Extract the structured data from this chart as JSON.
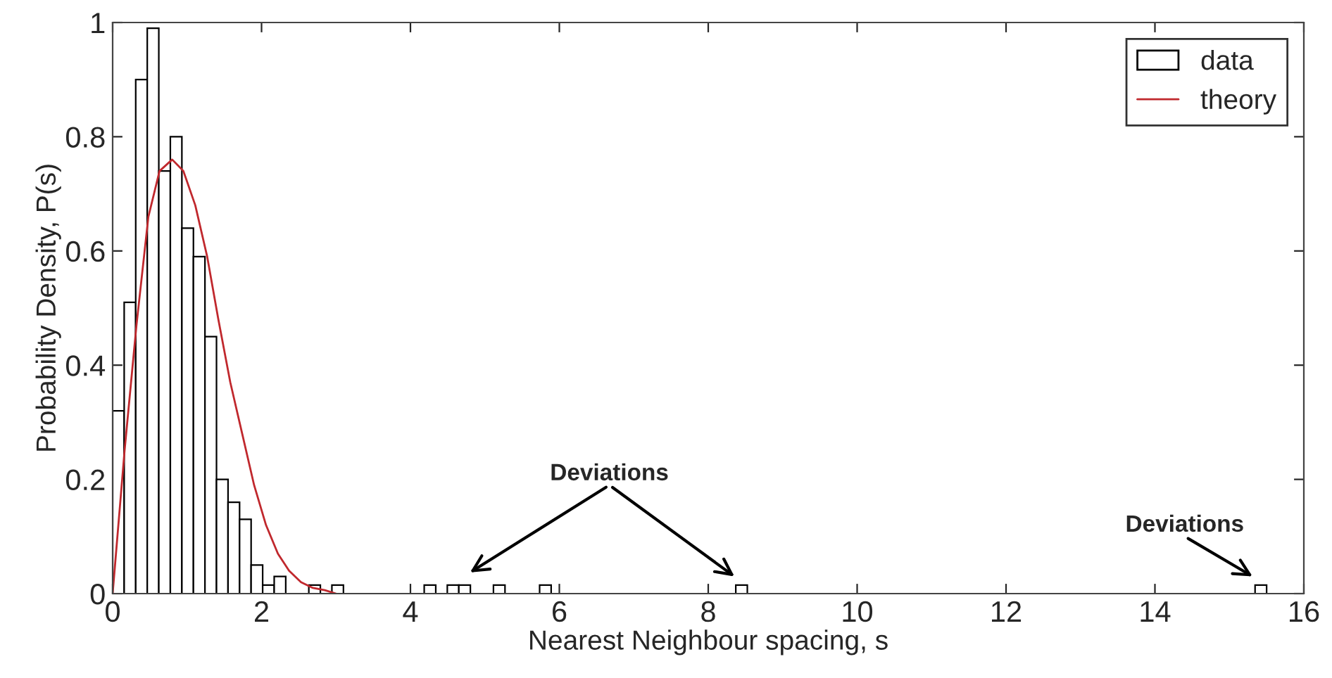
{
  "chart_data": {
    "type": "histogram",
    "xlabel": "Nearest Neighbour spacing, s",
    "ylabel": "Probability Density, P(s)",
    "bins": [
      0,
      0.155,
      0.31,
      0.465,
      0.62,
      0.775,
      0.93,
      1.085,
      1.24,
      1.395,
      1.55,
      1.705,
      1.86,
      2.015,
      2.17,
      2.325,
      2.48,
      2.635,
      2.79,
      2.945,
      3.1,
      3.255,
      3.41,
      3.565,
      3.72,
      3.875,
      4.03,
      4.185,
      4.34,
      4.495,
      4.65,
      4.805,
      4.96,
      5.115,
      5.27,
      5.425,
      5.58,
      5.735,
      5.89,
      6.045,
      6.2,
      6.355,
      6.51,
      6.665,
      6.82,
      6.975,
      7.13,
      7.285,
      7.44,
      7.595,
      7.75,
      7.905,
      8.06,
      8.215,
      8.37,
      8.525,
      8.68,
      8.835,
      8.99,
      9.145,
      9.3,
      9.455,
      9.61,
      9.765,
      9.92,
      10.075,
      10.23,
      10.385,
      10.54,
      10.695,
      10.85,
      11.005,
      11.16,
      11.315,
      11.47,
      11.625,
      11.78,
      11.935,
      12.09,
      12.245,
      12.4,
      12.555,
      12.71,
      12.865,
      13.02,
      13.175,
      13.33,
      13.485,
      13.64,
      13.795,
      13.95,
      14.105,
      14.26,
      14.415,
      14.57,
      14.725,
      14.88,
      15.035,
      15.19,
      15.345,
      15.5
    ],
    "series": [
      {
        "name": "data",
        "color": "#000000",
        "values": [
          0.32,
          0.51,
          0.9,
          0.99,
          0.74,
          0.8,
          0.64,
          0.59,
          0.45,
          0.2,
          0.16,
          0.13,
          0.05,
          0.015,
          0.03,
          0,
          0,
          0.015,
          0,
          0.015,
          0,
          0,
          0,
          0,
          0,
          0,
          0,
          0.015,
          0,
          0.015,
          0.015,
          0,
          0,
          0.015,
          0,
          0,
          0,
          0.015,
          0,
          0,
          0,
          0,
          0,
          0,
          0,
          0,
          0,
          0,
          0,
          0,
          0,
          0,
          0,
          0,
          0.015,
          0,
          0,
          0,
          0,
          0,
          0,
          0,
          0,
          0,
          0,
          0,
          0,
          0,
          0,
          0,
          0,
          0,
          0,
          0,
          0,
          0,
          0,
          0,
          0,
          0,
          0,
          0,
          0,
          0,
          0,
          0,
          0,
          0,
          0,
          0,
          0,
          0,
          0,
          0,
          0,
          0,
          0,
          0,
          0,
          0.015
        ]
      },
      {
        "name": "theory",
        "type": "line",
        "color": "#c0282d",
        "x": [
          0,
          0.16,
          0.32,
          0.48,
          0.63,
          0.8,
          0.95,
          1.11,
          1.27,
          1.42,
          1.58,
          1.74,
          1.9,
          2.06,
          2.22,
          2.37,
          2.53,
          2.69,
          2.85,
          3.0
        ],
        "values": [
          0,
          0.25,
          0.47,
          0.66,
          0.74,
          0.76,
          0.74,
          0.68,
          0.59,
          0.48,
          0.37,
          0.28,
          0.19,
          0.12,
          0.07,
          0.04,
          0.02,
          0.01,
          0.006,
          0
        ]
      }
    ],
    "xlim": [
      0,
      16
    ],
    "xticks": [
      0,
      2,
      4,
      6,
      8,
      10,
      12,
      14,
      16
    ],
    "ylim": [
      0,
      1
    ],
    "yticks": [
      0,
      {
        "value": 0.2,
        "label": "0.2"
      },
      {
        "value": 0.4,
        "label": "0.4"
      },
      {
        "value": 0.6,
        "label": "0.6"
      },
      {
        "value": 0.8,
        "label": "0.8"
      },
      1
    ],
    "annotations": [
      "Deviations",
      "Deviations"
    ],
    "legend": "top right",
    "grid": false
  }
}
